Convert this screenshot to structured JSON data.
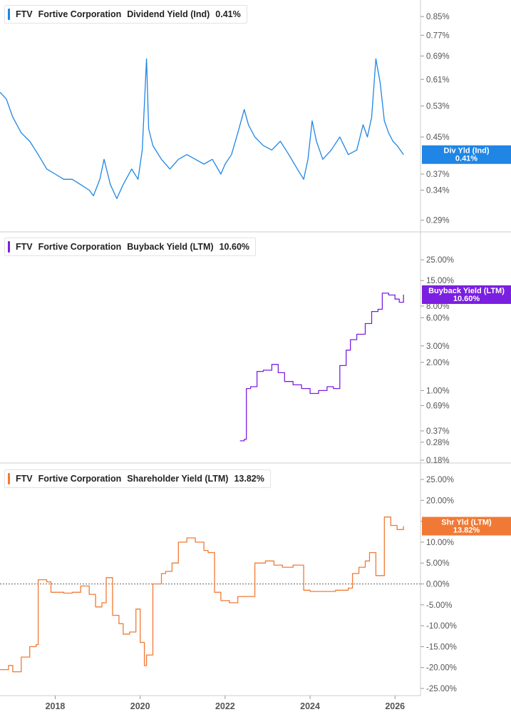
{
  "ticker": "FTV",
  "company": "Fortive Corporation",
  "x_ticks": [
    "2018",
    "2020",
    "2022",
    "2024",
    "2026"
  ],
  "colors": {
    "dividend": "#1f86e5",
    "buyback": "#7b1fe0",
    "shareholder": "#f07a35",
    "axis_text": "#555555",
    "grid": "#cccccc"
  },
  "chart_data": [
    {
      "type": "line",
      "metric": "Dividend Yield (Ind)",
      "current_value_label": "0.41%",
      "badge": {
        "label": "Div Yld (Ind)",
        "value": "0.41%"
      },
      "scale": "log",
      "y_ticks": [
        "0.85%",
        "0.77%",
        "0.69%",
        "0.61%",
        "0.53%",
        "0.45%",
        "0.37%",
        "0.34%",
        "0.29%"
      ],
      "y_tick_values": [
        0.85,
        0.77,
        0.69,
        0.61,
        0.53,
        0.45,
        0.37,
        0.34,
        0.29
      ],
      "ylim": [
        0.28,
        0.9
      ],
      "x": [
        2016.7,
        2016.85,
        2017.0,
        2017.2,
        2017.4,
        2017.6,
        2017.8,
        2018.0,
        2018.2,
        2018.4,
        2018.6,
        2018.8,
        2018.9,
        2019.05,
        2019.15,
        2019.3,
        2019.45,
        2019.6,
        2019.8,
        2019.95,
        2020.05,
        2020.15,
        2020.2,
        2020.3,
        2020.5,
        2020.7,
        2020.9,
        2021.1,
        2021.3,
        2021.5,
        2021.7,
        2021.9,
        2022.0,
        2022.15,
        2022.3,
        2022.45,
        2022.55,
        2022.7,
        2022.9,
        2023.1,
        2023.3,
        2023.5,
        2023.7,
        2023.85,
        2023.95,
        2024.05,
        2024.15,
        2024.3,
        2024.5,
        2024.7,
        2024.9,
        2025.1,
        2025.25,
        2025.35,
        2025.45,
        2025.55,
        2025.65,
        2025.75,
        2025.85,
        2025.95,
        2026.05,
        2026.2
      ],
      "y": [
        0.57,
        0.55,
        0.5,
        0.46,
        0.44,
        0.41,
        0.38,
        0.37,
        0.36,
        0.36,
        0.35,
        0.34,
        0.33,
        0.36,
        0.4,
        0.35,
        0.325,
        0.35,
        0.38,
        0.36,
        0.42,
        0.68,
        0.47,
        0.43,
        0.4,
        0.38,
        0.4,
        0.41,
        0.4,
        0.39,
        0.4,
        0.37,
        0.39,
        0.41,
        0.46,
        0.52,
        0.48,
        0.45,
        0.43,
        0.42,
        0.44,
        0.41,
        0.38,
        0.36,
        0.4,
        0.49,
        0.44,
        0.4,
        0.42,
        0.45,
        0.41,
        0.42,
        0.48,
        0.45,
        0.5,
        0.68,
        0.6,
        0.49,
        0.46,
        0.44,
        0.43,
        0.41
      ]
    },
    {
      "type": "line",
      "metric": "Buyback Yield (LTM)",
      "current_value_label": "10.60%",
      "badge": {
        "label": "Buyback Yield (LTM)",
        "value": "10.60%"
      },
      "scale": "log",
      "y_ticks": [
        "25.00%",
        "15.00%",
        "8.00%",
        "6.00%",
        "3.00%",
        "2.00%",
        "1.00%",
        "0.69%",
        "0.37%",
        "0.28%",
        "0.18%"
      ],
      "y_tick_values": [
        25,
        15,
        8,
        6,
        3,
        2,
        1,
        0.69,
        0.37,
        0.28,
        0.18
      ],
      "ylim": [
        0.18,
        35
      ],
      "x": [
        2022.35,
        2022.45,
        2022.5,
        2022.6,
        2022.75,
        2022.9,
        2023.1,
        2023.25,
        2023.4,
        2023.6,
        2023.8,
        2024.0,
        2024.2,
        2024.4,
        2024.55,
        2024.7,
        2024.85,
        2024.95,
        2025.1,
        2025.3,
        2025.45,
        2025.6,
        2025.7,
        2025.85,
        2026.0,
        2026.1,
        2026.2
      ],
      "y": [
        0.29,
        0.3,
        1.05,
        1.1,
        1.6,
        1.65,
        1.9,
        1.55,
        1.25,
        1.15,
        1.05,
        0.93,
        1.0,
        1.1,
        1.05,
        1.85,
        2.7,
        3.5,
        4.0,
        5.2,
        7.0,
        7.4,
        11.0,
        10.5,
        9.5,
        8.8,
        10.6
      ]
    },
    {
      "type": "line",
      "metric": "Shareholder Yield (LTM)",
      "current_value_label": "13.82%",
      "badge": {
        "label": "Shr Yld (LTM)",
        "value": "13.82%"
      },
      "scale": "linear",
      "y_ticks": [
        "25.00%",
        "20.00%",
        "15.00%",
        "10.00%",
        "5.00%",
        "0.00%",
        "-5.00%",
        "-10.00%",
        "-15.00%",
        "-20.00%",
        "-25.00%"
      ],
      "y_tick_values": [
        25,
        20,
        15,
        10,
        5,
        0,
        -5,
        -10,
        -15,
        -20,
        -25
      ],
      "ylim": [
        -25,
        25
      ],
      "zero_line": true,
      "x": [
        2016.7,
        2016.9,
        2017.0,
        2017.2,
        2017.4,
        2017.55,
        2017.6,
        2017.8,
        2017.9,
        2018.2,
        2018.4,
        2018.6,
        2018.8,
        2018.95,
        2019.1,
        2019.2,
        2019.35,
        2019.5,
        2019.6,
        2019.75,
        2019.9,
        2020.0,
        2020.1,
        2020.15,
        2020.3,
        2020.5,
        2020.6,
        2020.75,
        2020.9,
        2021.1,
        2021.3,
        2021.5,
        2021.6,
        2021.75,
        2021.9,
        2022.1,
        2022.3,
        2022.5,
        2022.7,
        2022.95,
        2023.15,
        2023.35,
        2023.6,
        2023.85,
        2024.0,
        2024.3,
        2024.6,
        2024.9,
        2025.0,
        2025.15,
        2025.3,
        2025.4,
        2025.55,
        2025.7,
        2025.75,
        2025.9,
        2026.05,
        2026.2
      ],
      "y": [
        -20.5,
        -19.5,
        -21.0,
        -17.5,
        -15.0,
        -14.5,
        1.0,
        0.5,
        -2.0,
        -2.2,
        -2.0,
        -0.5,
        -2.5,
        -5.5,
        -4.5,
        1.5,
        -7.5,
        -9.5,
        -12.0,
        -11.5,
        -6.0,
        -14.0,
        -19.5,
        -17.0,
        0.0,
        2.5,
        3.0,
        5.0,
        10.0,
        11.0,
        10.0,
        8.0,
        7.5,
        -2.0,
        -4.0,
        -4.5,
        -3.0,
        -3.0,
        5.0,
        5.5,
        4.5,
        4.0,
        4.5,
        -1.5,
        -1.8,
        -1.8,
        -1.5,
        -1.0,
        2.5,
        4.0,
        5.5,
        7.5,
        2.0,
        2.0,
        16.0,
        14.0,
        13.0,
        13.82
      ]
    }
  ]
}
